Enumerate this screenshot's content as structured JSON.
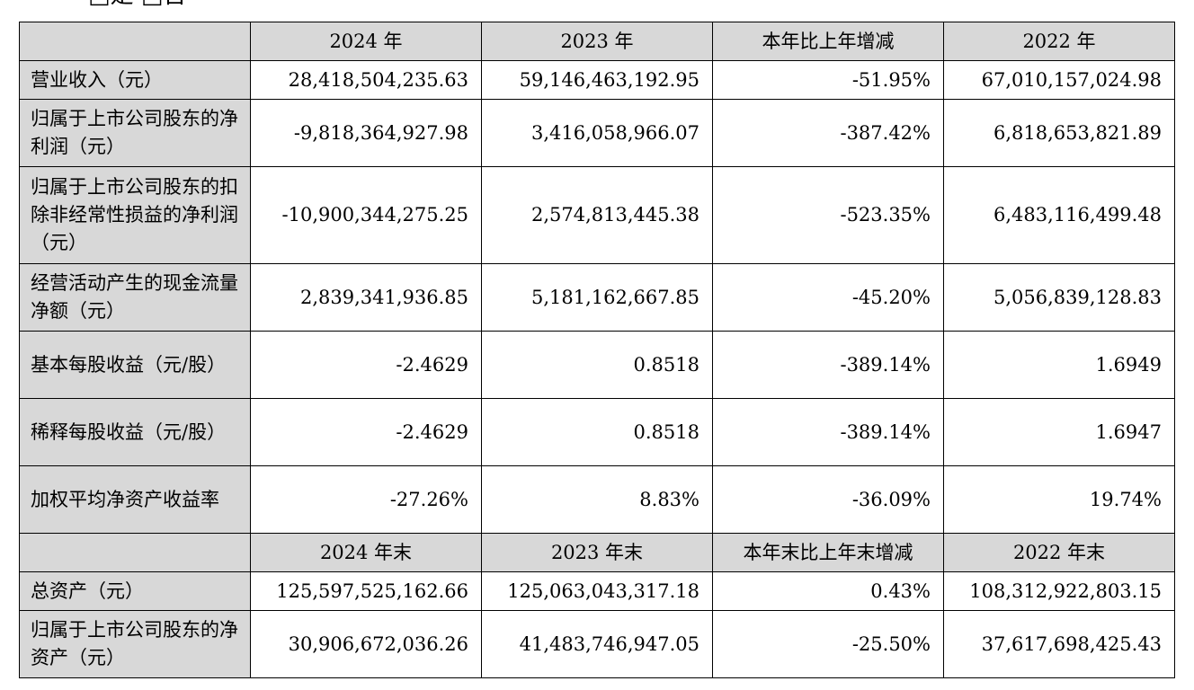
{
  "top_fragment": "□是 □否",
  "header_annual": [
    "",
    "2024 年",
    "2023 年",
    "本年比上年增减",
    "2022 年"
  ],
  "annual_rows": [
    {
      "label": "营业收入（元）",
      "values": [
        "28,418,504,235.63",
        "59,146,463,192.95",
        "-51.95%",
        "67,010,157,024.98"
      ]
    },
    {
      "label": "归属于上市公司股东的净利润（元）",
      "values": [
        "-9,818,364,927.98",
        "3,416,058,966.07",
        "-387.42%",
        "6,818,653,821.89"
      ]
    },
    {
      "label": "归属于上市公司股东的扣除非经常性损益的净利润（元）",
      "values": [
        "-10,900,344,275.25",
        "2,574,813,445.38",
        "-523.35%",
        "6,483,116,499.48"
      ]
    },
    {
      "label": "经营活动产生的现金流量净额（元）",
      "values": [
        "2,839,341,936.85",
        "5,181,162,667.85",
        "-45.20%",
        "5,056,839,128.83"
      ]
    },
    {
      "label": "基本每股收益（元/股）",
      "values": [
        "-2.4629",
        "0.8518",
        "-389.14%",
        "1.6949"
      ]
    },
    {
      "label": "稀释每股收益（元/股）",
      "values": [
        "-2.4629",
        "0.8518",
        "-389.14%",
        "1.6947"
      ]
    },
    {
      "label": "加权平均净资产收益率",
      "values": [
        "-27.26%",
        "8.83%",
        "-36.09%",
        "19.74%"
      ]
    }
  ],
  "header_yearend": [
    "",
    "2024 年末",
    "2023 年末",
    "本年末比上年末增减",
    "2022 年末"
  ],
  "yearend_rows": [
    {
      "label": "总资产（元）",
      "values": [
        "125,597,525,162.66",
        "125,063,043,317.18",
        "0.43%",
        "108,312,922,803.15"
      ]
    },
    {
      "label": "归属于上市公司股东的净资产（元）",
      "values": [
        "30,906,672,036.26",
        "41,483,746,947.05",
        "-25.50%",
        "37,617,698,425.43"
      ]
    }
  ]
}
